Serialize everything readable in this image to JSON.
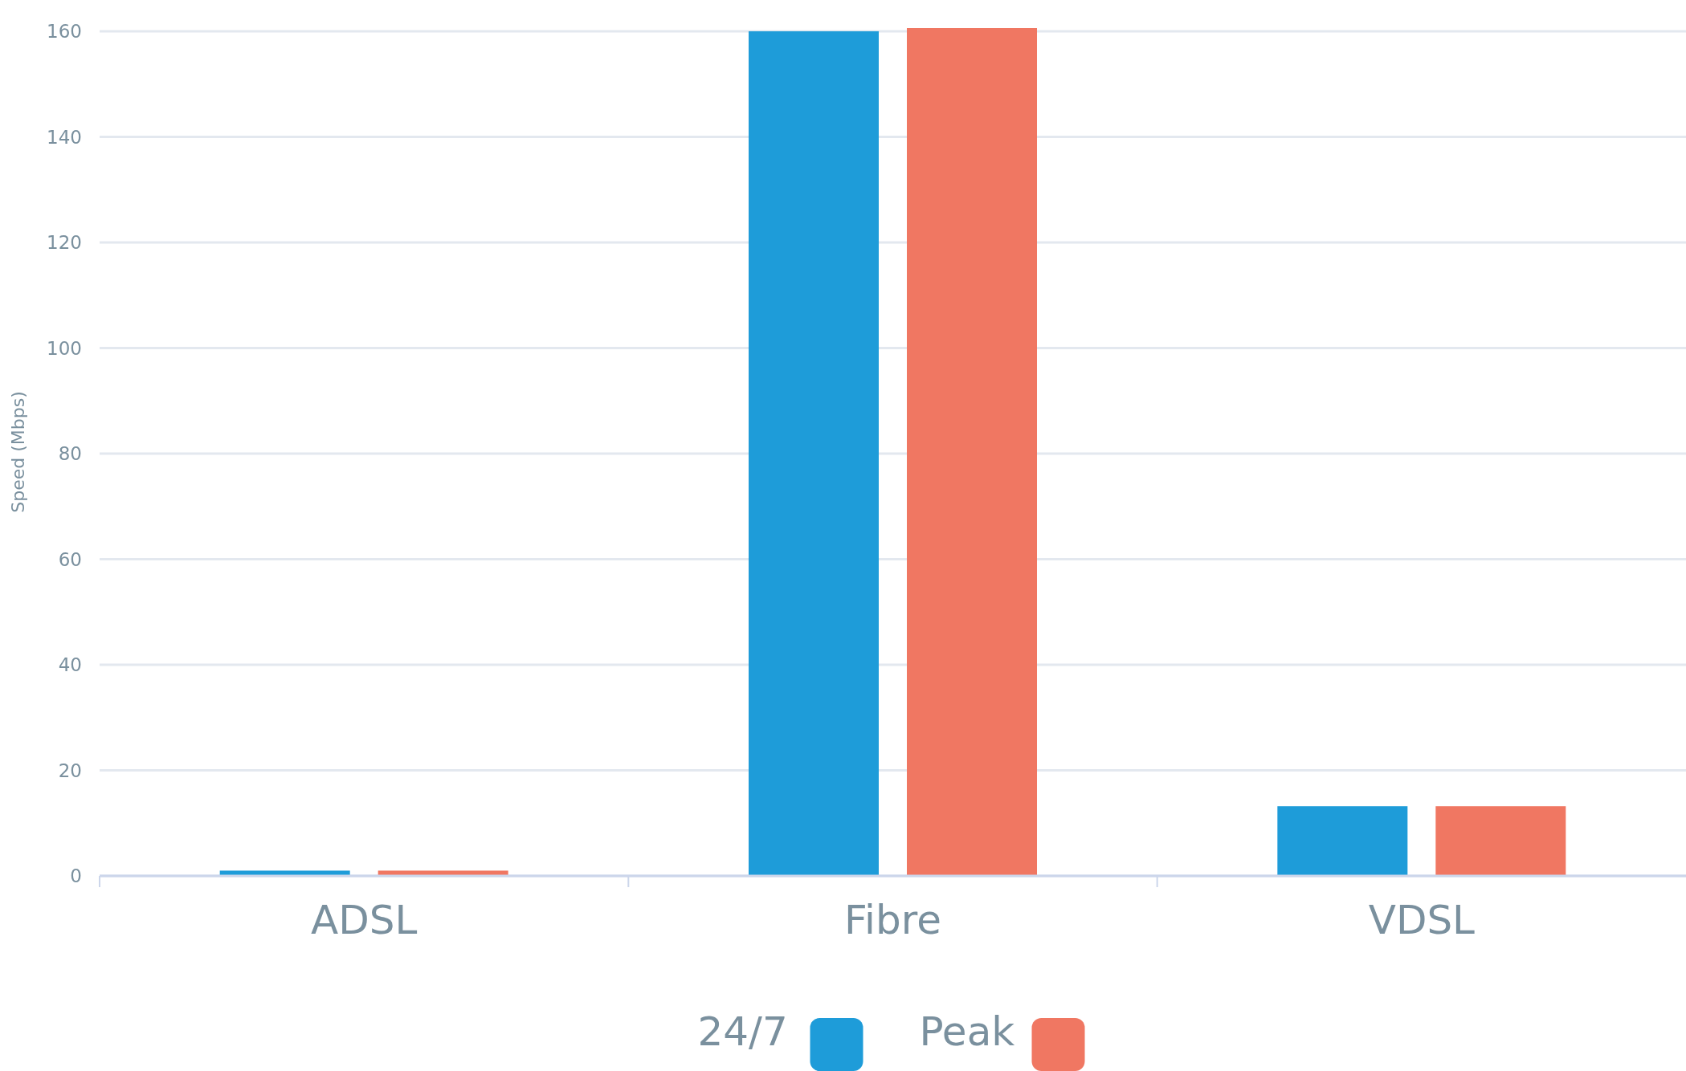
{
  "chart_data": {
    "type": "bar",
    "ylabel": "Speed (Mbps)",
    "categories": [
      "ADSL",
      "Fibre",
      "VDSL"
    ],
    "series": [
      {
        "name": "24/7",
        "color": "#1e9cd9",
        "values": [
          1,
          160,
          13.2
        ]
      },
      {
        "name": "Peak",
        "color": "#f07762",
        "values": [
          1,
          160.6,
          13.2
        ]
      }
    ],
    "ylim": [
      0,
      160.6
    ],
    "yticks": [
      0,
      20,
      40,
      60,
      80,
      100,
      120,
      140,
      160
    ],
    "grid": "y",
    "legend": "bottom"
  }
}
